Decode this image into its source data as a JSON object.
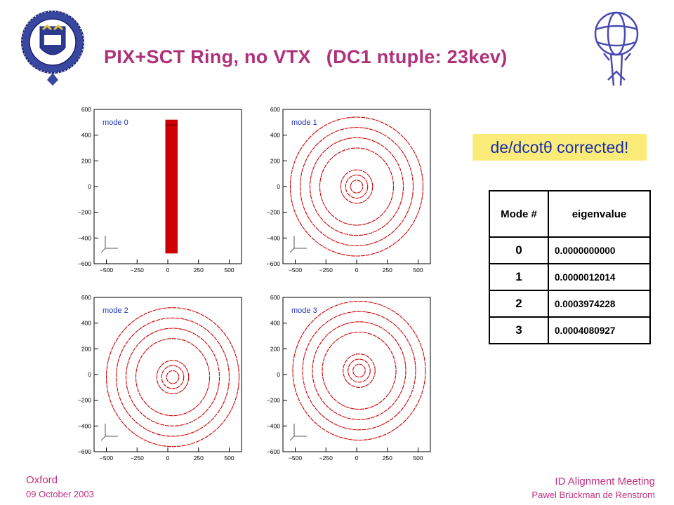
{
  "title": {
    "part1": "PIX+SCT Ring, no VTX",
    "part2": "(DC1 ntuple: 23kev)"
  },
  "note": {
    "text": "de/dcotθ corrected!"
  },
  "table": {
    "headers": [
      "Mode #",
      "eigenvalue"
    ],
    "rows": [
      {
        "mode": "0",
        "eigenvalue": "0.0000000000"
      },
      {
        "mode": "1",
        "eigenvalue": "0.0000012014"
      },
      {
        "mode": "2",
        "eigenvalue": "0.0003974228"
      },
      {
        "mode": "3",
        "eigenvalue": "0.0004080927"
      }
    ]
  },
  "footer": {
    "left_line1": "Oxford",
    "left_line2": "09 October 2003",
    "right_line1": "ID Alignment Meeting",
    "right_line2": "Pawel Brückman de Renstrom"
  },
  "colors": {
    "title": "#b0307a",
    "plot": "#cc0000",
    "note_bg": "#fbec7a",
    "note_text": "#1a2fa8"
  },
  "chart_data": [
    {
      "type": "scatter",
      "label": "mode 0",
      "xlim": [
        -600,
        600
      ],
      "ylim": [
        -600,
        600
      ],
      "xticks": [
        "−500",
        "−250",
        "0",
        "250",
        "500"
      ],
      "yticks": [
        "600",
        "400",
        "200",
        "0",
        "−200",
        "−400",
        "−600"
      ],
      "shape": "bar",
      "bar_x": [
        -20,
        80
      ],
      "bar_y": [
        -520,
        520
      ]
    },
    {
      "type": "scatter",
      "label": "mode 1",
      "xlim": [
        -600,
        600
      ],
      "ylim": [
        -600,
        600
      ],
      "xticks": [
        "−500",
        "−250",
        "0",
        "250",
        "500"
      ],
      "yticks": [
        "600",
        "400",
        "200",
        "0",
        "−200",
        "−400",
        "−600"
      ],
      "shape": "rings",
      "center": [
        0,
        0
      ],
      "radii": [
        50,
        90,
        130,
        300,
        380,
        460,
        540
      ]
    },
    {
      "type": "scatter",
      "label": "mode 2",
      "xlim": [
        -600,
        600
      ],
      "ylim": [
        -600,
        600
      ],
      "xticks": [
        "−500",
        "−250",
        "0",
        "250",
        "500"
      ],
      "yticks": [
        "600",
        "400",
        "200",
        "0",
        "−200",
        "−400",
        "−600"
      ],
      "shape": "rings",
      "center": [
        40,
        -20
      ],
      "radii": [
        50,
        90,
        130,
        300,
        380,
        460,
        540
      ]
    },
    {
      "type": "scatter",
      "label": "mode 3",
      "xlim": [
        -600,
        600
      ],
      "ylim": [
        -600,
        600
      ],
      "xticks": [
        "−500",
        "−250",
        "0",
        "250",
        "500"
      ],
      "yticks": [
        "600",
        "400",
        "200",
        "0",
        "−200",
        "−400",
        "−600"
      ],
      "shape": "rings",
      "center": [
        20,
        30
      ],
      "radii": [
        50,
        90,
        130,
        300,
        380,
        460,
        540
      ]
    }
  ]
}
